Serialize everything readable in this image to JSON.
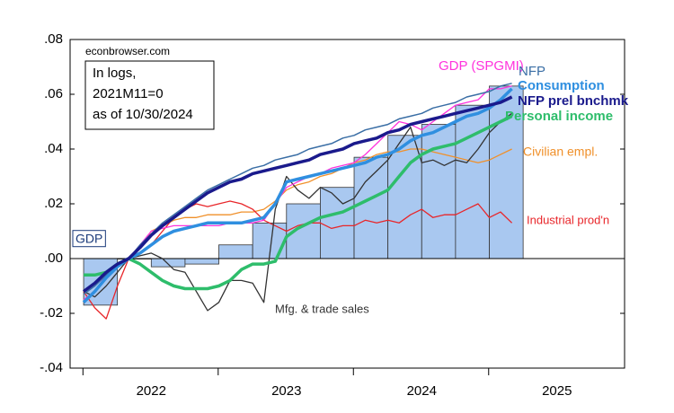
{
  "chart_data": {
    "type": "line",
    "annotations": [
      "econbrowser.com",
      "In logs,",
      "2021M11=0",
      "as of 10/30/2024"
    ],
    "x": [
      2021.5,
      2021.583,
      2021.667,
      2021.75,
      2021.833,
      2021.917,
      2022,
      2022.083,
      2022.167,
      2022.25,
      2022.333,
      2022.417,
      2022.5,
      2022.583,
      2022.667,
      2022.75,
      2022.833,
      2022.917,
      2023,
      2023.083,
      2023.167,
      2023.25,
      2023.333,
      2023.417,
      2023.5,
      2023.583,
      2023.667,
      2023.75,
      2023.833,
      2023.917,
      2024,
      2024.083,
      2024.167,
      2024.25,
      2024.333,
      2024.417,
      2024.5,
      2024.583,
      2024.667
    ],
    "series": [
      {
        "name": "GDP",
        "type": "bar",
        "color": "#a9c8f0",
        "x": [
          2021.625,
          2021.875,
          2022.125,
          2022.375,
          2022.625,
          2022.875,
          2023.125,
          2023.375,
          2023.625,
          2023.875,
          2024.125,
          2024.375,
          2024.625
        ],
        "values": [
          -0.017,
          0.0,
          -0.003,
          -0.002,
          0.005,
          0.013,
          0.02,
          0.026,
          0.037,
          0.045,
          0.049,
          0.056,
          0.063
        ]
      },
      {
        "name": "Civilian empl.",
        "color": "#f0902a",
        "width": 1.3,
        "values": [
          -0.012,
          -0.009,
          -0.006,
          -0.003,
          0,
          0.004,
          0.01,
          0.012,
          0.014,
          0.015,
          0.015,
          0.016,
          0.016,
          0.016,
          0.017,
          0.017,
          0.018,
          0.021,
          0.025,
          0.027,
          0.028,
          0.03,
          0.031,
          0.033,
          0.035,
          0.036,
          0.038,
          0.039,
          0.039,
          0.04,
          0.04,
          0.039,
          0.038,
          0.037,
          0.036,
          0.035,
          0.036,
          0.038,
          0.04
        ]
      },
      {
        "name": "Industrial prod'n",
        "color": "#e8262a",
        "width": 1.3,
        "values": [
          -0.012,
          -0.018,
          -0.022,
          -0.01,
          0,
          0.002,
          0.005,
          0.01,
          0.015,
          0.018,
          0.02,
          0.019,
          0.02,
          0.021,
          0.02,
          0.018,
          0.014,
          0.012,
          0.01,
          0.012,
          0.013,
          0.013,
          0.011,
          0.012,
          0.012,
          0.014,
          0.013,
          0.014,
          0.013,
          0.016,
          0.018,
          0.015,
          0.016,
          0.016,
          0.018,
          0.02,
          0.015,
          0.017,
          0.013
        ]
      },
      {
        "name": "Mfg. & trade sales",
        "color": "#333333",
        "width": 1.3,
        "values": [
          -0.012,
          -0.014,
          -0.01,
          -0.005,
          0,
          0.001,
          0.002,
          0.0,
          -0.004,
          -0.005,
          -0.012,
          -0.019,
          -0.016,
          -0.008,
          -0.008,
          -0.009,
          -0.016,
          0.018,
          0.03,
          0.025,
          0.022,
          0.026,
          0.024,
          0.02,
          0.022,
          0.028,
          0.032,
          0.036,
          0.042,
          0.048,
          0.035,
          0.036,
          0.034,
          0.036,
          0.035,
          0.04,
          0.046,
          0.05,
          0.053
        ]
      },
      {
        "name": "GDP (SPGMI)",
        "color": "#ff33dd",
        "width": 1.3,
        "values": [
          -0.015,
          -0.012,
          -0.006,
          -0.002,
          0,
          0.005,
          0.01,
          0.011,
          0.012,
          0.012,
          0.012,
          0.012,
          0.012,
          0.013,
          0.013,
          0.013,
          0.014,
          0.02,
          0.026,
          0.028,
          0.03,
          0.031,
          0.033,
          0.034,
          0.035,
          0.038,
          0.042,
          0.046,
          0.05,
          0.049,
          0.047,
          0.05,
          0.053,
          0.056,
          0.057,
          0.058,
          0.062,
          0.062,
          0.063
        ]
      },
      {
        "name": "NFP",
        "color": "#3a6ea5",
        "width": 1.5,
        "values": [
          -0.013,
          -0.01,
          -0.006,
          -0.002,
          0,
          0.005,
          0.009,
          0.013,
          0.016,
          0.019,
          0.022,
          0.025,
          0.027,
          0.029,
          0.031,
          0.033,
          0.034,
          0.036,
          0.037,
          0.038,
          0.04,
          0.041,
          0.042,
          0.044,
          0.045,
          0.047,
          0.048,
          0.049,
          0.051,
          0.052,
          0.053,
          0.055,
          0.056,
          0.057,
          0.059,
          0.06,
          0.061,
          0.063,
          0.064
        ]
      },
      {
        "name": "Personal income",
        "color": "#2ebd6b",
        "width": 3.5,
        "values": [
          -0.006,
          -0.006,
          -0.005,
          -0.002,
          0,
          -0.002,
          -0.005,
          -0.008,
          -0.01,
          -0.011,
          -0.011,
          -0.011,
          -0.01,
          -0.008,
          -0.004,
          -0.002,
          -0.002,
          -0.001,
          0.008,
          0.011,
          0.013,
          0.015,
          0.016,
          0.017,
          0.019,
          0.021,
          0.023,
          0.025,
          0.03,
          0.035,
          0.038,
          0.04,
          0.041,
          0.042,
          0.044,
          0.046,
          0.048,
          0.05,
          0.052
        ]
      },
      {
        "name": "Consumption",
        "color": "#2f8fe0",
        "width": 3.5,
        "values": [
          -0.016,
          -0.012,
          -0.007,
          -0.003,
          0,
          0.002,
          0.005,
          0.008,
          0.01,
          0.011,
          0.012,
          0.013,
          0.013,
          0.013,
          0.013,
          0.014,
          0.015,
          0.02,
          0.028,
          0.029,
          0.03,
          0.031,
          0.032,
          0.033,
          0.034,
          0.035,
          0.037,
          0.038,
          0.04,
          0.043,
          0.045,
          0.046,
          0.048,
          0.05,
          0.052,
          0.053,
          0.055,
          0.058,
          0.062
        ]
      },
      {
        "name": "NFP prel bnchmk",
        "color": "#1a1a8c",
        "width": 3.5,
        "values": [
          -0.012,
          -0.009,
          -0.005,
          -0.002,
          0,
          0.004,
          0.0085,
          0.012,
          0.015,
          0.018,
          0.021,
          0.024,
          0.026,
          0.028,
          0.029,
          0.031,
          0.032,
          0.033,
          0.034,
          0.035,
          0.036,
          0.038,
          0.039,
          0.04,
          0.042,
          0.043,
          0.044,
          0.046,
          0.047,
          0.049,
          0.05,
          0.051,
          0.052,
          0.053,
          0.054,
          0.055,
          0.056,
          0.057,
          0.059
        ]
      }
    ],
    "xlim": [
      2021.4,
      2025.5
    ],
    "xticks": [
      2022,
      2023,
      2024,
      2025
    ],
    "ylim": [
      -0.04,
      0.08
    ],
    "yticks": [
      {
        "value": -0.04,
        "label": "-.04"
      },
      {
        "value": -0.02,
        "label": "-.02"
      },
      {
        "value": 0,
        "label": ".00"
      },
      {
        "value": 0.02,
        "label": ".02"
      },
      {
        "value": 0.04,
        "label": ".04"
      },
      {
        "value": 0.06,
        "label": ".06"
      },
      {
        "value": 0.08,
        "label": ".08"
      }
    ],
    "zero_line": true
  }
}
